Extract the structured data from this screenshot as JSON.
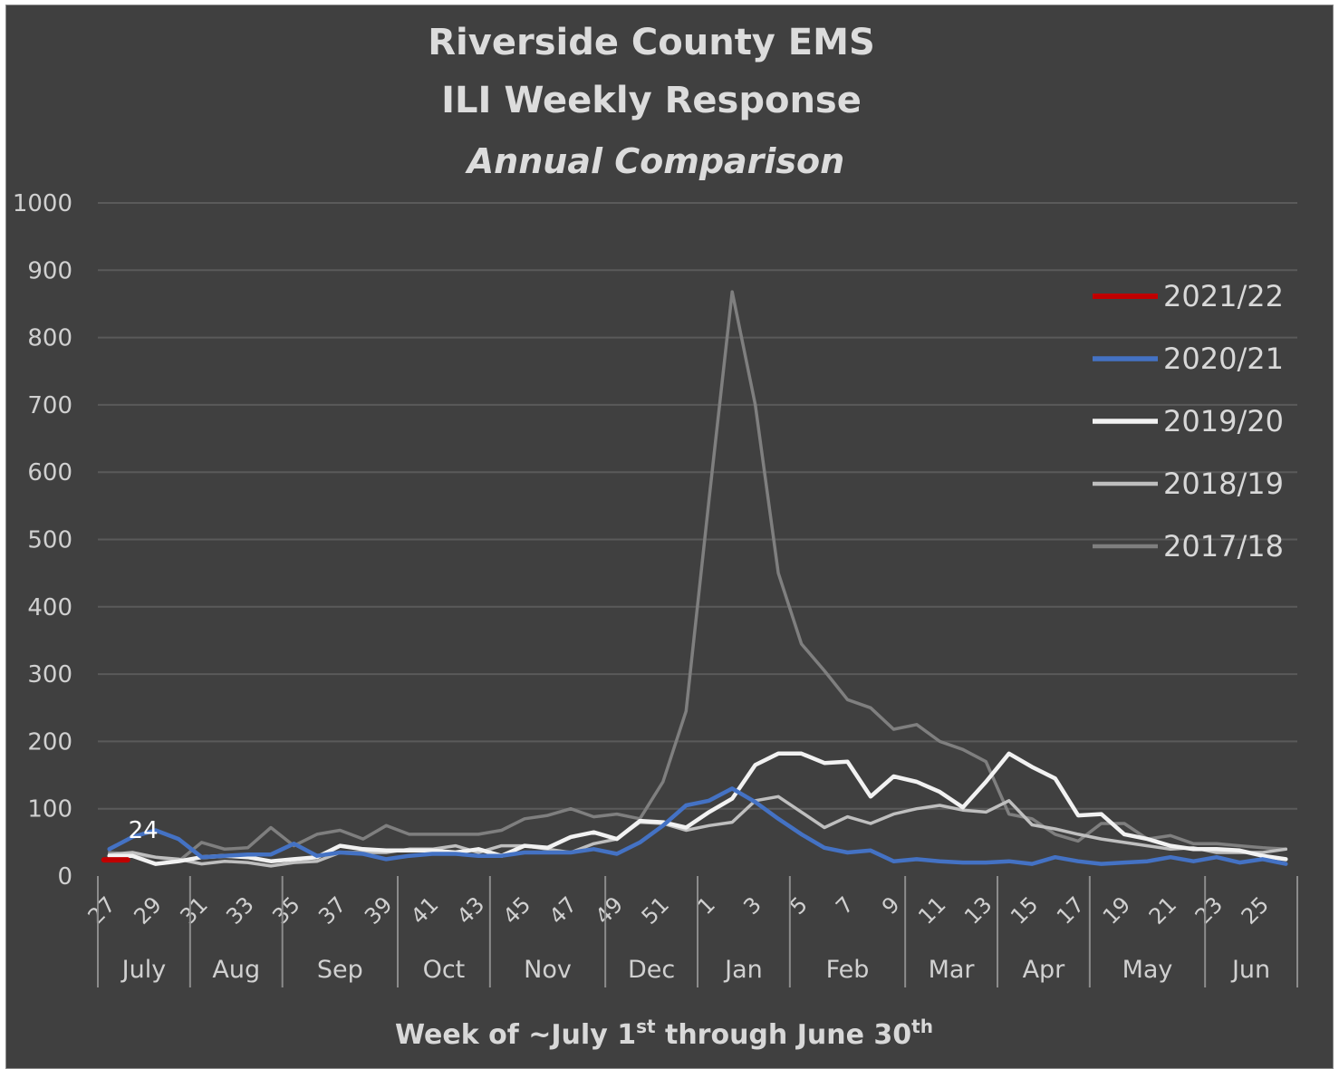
{
  "chart_data": {
    "type": "line",
    "title_lines": [
      "Riverside County EMS",
      "ILI Weekly Response"
    ],
    "subtitle": "Annual Comparison",
    "xlabel": {
      "main": "Week of ~July 1",
      "sup1": "st",
      "mid": " through June 30",
      "sup2": "th"
    },
    "ylabel": "",
    "ylim": [
      0,
      1000
    ],
    "yticks": [
      0,
      100,
      200,
      300,
      400,
      500,
      600,
      700,
      800,
      900,
      1000
    ],
    "grid": true,
    "legend_position": "right",
    "x_tick_labels": [
      "27",
      "29",
      "31",
      "33",
      "35",
      "37",
      "39",
      "41",
      "43",
      "45",
      "47",
      "49",
      "51",
      "1",
      "3",
      "5",
      "7",
      "9",
      "11",
      "13",
      "15",
      "17",
      "19",
      "21",
      "23",
      "25"
    ],
    "months": [
      {
        "name": "July",
        "weeks": 4
      },
      {
        "name": "Aug",
        "weeks": 4
      },
      {
        "name": "Sep",
        "weeks": 5
      },
      {
        "name": "Oct",
        "weeks": 4
      },
      {
        "name": "Nov",
        "weeks": 5
      },
      {
        "name": "Dec",
        "weeks": 4
      },
      {
        "name": "Jan",
        "weeks": 4
      },
      {
        "name": "Feb",
        "weeks": 5
      },
      {
        "name": "Mar",
        "weeks": 4
      },
      {
        "name": "Apr",
        "weeks": 4
      },
      {
        "name": "May",
        "weeks": 5
      },
      {
        "name": "Jun",
        "weeks": 4
      }
    ],
    "weeks": [
      27,
      28,
      29,
      30,
      31,
      32,
      33,
      34,
      35,
      36,
      37,
      38,
      39,
      40,
      41,
      42,
      43,
      44,
      45,
      46,
      47,
      48,
      49,
      50,
      51,
      52,
      1,
      2,
      3,
      4,
      5,
      6,
      7,
      8,
      9,
      10,
      11,
      12,
      13,
      14,
      15,
      16,
      17,
      18,
      19,
      20,
      21,
      22,
      23,
      24,
      25,
      26
    ],
    "series": [
      {
        "name": "2021/22",
        "color": "#c00000",
        "width": 5,
        "values": [
          24
        ]
      },
      {
        "name": "2020/21",
        "color": "#4472c4",
        "width": 4.5,
        "values": [
          40,
          58,
          68,
          55,
          28,
          30,
          32,
          32,
          48,
          30,
          35,
          33,
          25,
          30,
          33,
          33,
          30,
          30,
          35,
          35,
          35,
          40,
          33,
          50,
          75,
          105,
          112,
          130,
          110,
          85,
          62,
          42,
          35,
          38,
          22,
          25,
          22,
          20,
          20,
          22,
          18,
          28,
          22,
          18,
          20,
          22,
          28,
          22,
          28,
          20,
          25,
          18
        ]
      },
      {
        "name": "2019/20",
        "color": "#f2f2f2",
        "width": 4.5,
        "values": [
          30,
          30,
          18,
          22,
          28,
          30,
          28,
          22,
          25,
          28,
          45,
          40,
          38,
          38,
          38,
          35,
          40,
          30,
          45,
          42,
          58,
          65,
          55,
          82,
          80,
          72,
          95,
          115,
          165,
          182,
          182,
          168,
          170,
          118,
          148,
          140,
          125,
          102,
          140,
          182,
          162,
          145,
          90,
          92,
          62,
          55,
          45,
          40,
          40,
          38,
          30,
          25
        ]
      },
      {
        "name": "2018/19",
        "color": "#bfbfbf",
        "width": 3.5,
        "values": [
          32,
          35,
          28,
          25,
          18,
          22,
          20,
          15,
          20,
          22,
          35,
          35,
          35,
          40,
          40,
          45,
          35,
          45,
          45,
          40,
          35,
          48,
          55,
          80,
          78,
          68,
          75,
          80,
          112,
          118,
          95,
          72,
          88,
          78,
          92,
          100,
          105,
          98,
          95,
          112,
          76,
          70,
          62,
          55,
          50,
          45,
          40,
          42,
          35,
          35,
          35,
          40
        ]
      },
      {
        "name": "2017/18",
        "color": "#7f7f7f",
        "width": 3.5,
        "values": [
          35,
          32,
          28,
          22,
          50,
          40,
          42,
          72,
          45,
          62,
          68,
          55,
          75,
          62,
          62,
          62,
          62,
          68,
          85,
          90,
          100,
          88,
          92,
          85,
          140,
          245,
          560,
          868,
          700,
          450,
          345,
          305,
          262,
          250,
          218,
          225,
          200,
          188,
          170,
          92,
          85,
          62,
          52,
          78,
          78,
          55,
          60,
          48,
          48,
          45,
          42,
          40
        ]
      }
    ],
    "annotations": [
      {
        "text": "24",
        "x_index": 1,
        "y": 24
      }
    ]
  }
}
